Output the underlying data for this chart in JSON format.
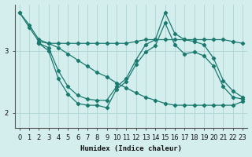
{
  "xlabel": "Humidex (Indice chaleur)",
  "bg_color": "#d4eeee",
  "line_color": "#1a7a6e",
  "grid_color": "#aed4d4",
  "xlim": [
    -0.5,
    23.5
  ],
  "ylim": [
    1.75,
    3.75
  ],
  "yticks": [
    2,
    3
  ],
  "xticks": [
    0,
    1,
    2,
    3,
    4,
    5,
    6,
    7,
    8,
    9,
    10,
    11,
    12,
    13,
    14,
    15,
    16,
    17,
    18,
    19,
    20,
    21,
    22,
    23
  ],
  "line1_x": [
    0,
    1,
    2,
    3,
    4,
    5,
    6,
    7,
    8,
    9,
    10,
    11,
    12,
    13,
    14,
    15,
    16,
    17,
    18,
    19,
    20,
    21,
    22,
    23
  ],
  "line1_y": [
    3.62,
    3.38,
    3.15,
    3.12,
    3.12,
    3.12,
    3.12,
    3.12,
    3.12,
    3.12,
    3.12,
    3.12,
    3.15,
    3.18,
    3.18,
    3.18,
    3.18,
    3.18,
    3.18,
    3.18,
    3.18,
    3.18,
    3.15,
    3.12
  ],
  "line2_x": [
    2,
    3,
    4,
    5,
    6,
    7,
    8,
    9,
    10,
    11,
    12,
    13,
    14,
    15,
    16,
    17,
    18,
    19,
    20,
    21,
    22,
    23
  ],
  "line2_y": [
    3.12,
    3.05,
    2.68,
    2.42,
    2.28,
    2.22,
    2.2,
    2.2,
    2.42,
    2.55,
    2.85,
    3.1,
    3.18,
    3.62,
    3.28,
    3.18,
    3.15,
    3.1,
    2.88,
    2.52,
    2.35,
    2.25
  ],
  "line3_x": [
    2,
    3,
    4,
    5,
    6,
    7,
    8,
    9,
    10,
    11,
    12,
    13,
    14,
    15,
    16,
    17,
    18,
    19,
    20,
    21,
    22,
    23
  ],
  "line3_y": [
    3.12,
    3.0,
    2.55,
    2.3,
    2.15,
    2.12,
    2.12,
    2.08,
    2.38,
    2.5,
    2.78,
    2.98,
    3.08,
    3.45,
    3.1,
    2.95,
    2.98,
    2.92,
    2.75,
    2.42,
    2.25,
    2.22
  ],
  "line4_x": [
    0,
    1,
    2,
    3,
    4,
    5,
    6,
    7,
    8,
    9,
    10,
    11,
    12,
    13,
    14,
    15,
    16,
    17,
    18,
    19,
    20,
    21,
    22,
    23
  ],
  "line4_y": [
    3.62,
    3.42,
    3.18,
    3.12,
    3.05,
    2.95,
    2.85,
    2.75,
    2.65,
    2.58,
    2.48,
    2.4,
    2.32,
    2.25,
    2.2,
    2.15,
    2.12,
    2.12,
    2.12,
    2.12,
    2.12,
    2.12,
    2.12,
    2.18
  ]
}
